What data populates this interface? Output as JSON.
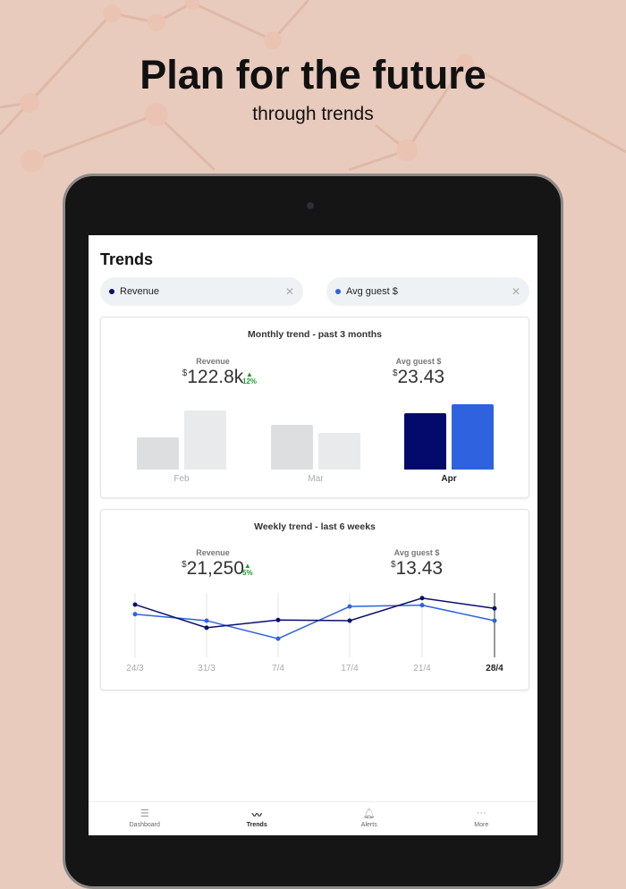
{
  "promo": {
    "headline": "Plan for the future",
    "subheadline": "through trends"
  },
  "app": {
    "title": "Trends",
    "filters": [
      {
        "label": "Revenue",
        "color": "#0a0f6b",
        "close_icon": "close-icon"
      },
      {
        "label": "Avg guest $",
        "color": "#2f62de",
        "close_icon": "close-icon"
      }
    ],
    "monthly": {
      "title": "Monthly trend - past 3 months",
      "revenue": {
        "label": "Revenue",
        "currency": "$",
        "value": "122.8k",
        "delta": "12%",
        "delta_direction": "up"
      },
      "avg_guest": {
        "label": "Avg guest $",
        "currency": "$",
        "value": "23.43"
      }
    },
    "weekly": {
      "title": "Weekly trend - last 6 weeks",
      "revenue": {
        "label": "Revenue",
        "currency": "$",
        "value": "21,250",
        "delta": "5%",
        "delta_direction": "up"
      },
      "avg_guest": {
        "label": "Avg guest $",
        "currency": "$",
        "value": "13.43"
      }
    },
    "nav": [
      {
        "label": "Dashboard",
        "icon": "dashboard-icon"
      },
      {
        "label": "Trends",
        "icon": "trends-icon",
        "active": true
      },
      {
        "label": "Alerts",
        "icon": "bell-icon"
      },
      {
        "label": "More",
        "icon": "more-icon"
      }
    ]
  },
  "chart_data": [
    {
      "type": "bar",
      "categories": [
        "Feb",
        "Mar",
        "Apr"
      ],
      "active_category": "Apr",
      "series": [
        {
          "name": "Revenue",
          "color": "#030a6b",
          "values": [
            36,
            50,
            63
          ]
        },
        {
          "name": "Avg guest $",
          "color": "#2f62de",
          "values": [
            66,
            41,
            73
          ]
        }
      ],
      "ylim": [
        0,
        80
      ],
      "grid": false
    },
    {
      "type": "line",
      "categories": [
        "24/3",
        "31/3",
        "7/4",
        "17/4",
        "21/4",
        "28/4"
      ],
      "active_category": "28/4",
      "series": [
        {
          "name": "Revenue",
          "color": "#0a0f6b",
          "values": [
            82,
            46,
            58,
            57,
            92,
            76
          ]
        },
        {
          "name": "Avg guest $",
          "color": "#2f62de",
          "values": [
            67,
            57,
            29,
            79,
            81,
            57
          ]
        }
      ],
      "ylim": [
        0,
        100
      ],
      "grid": "vertical"
    }
  ]
}
